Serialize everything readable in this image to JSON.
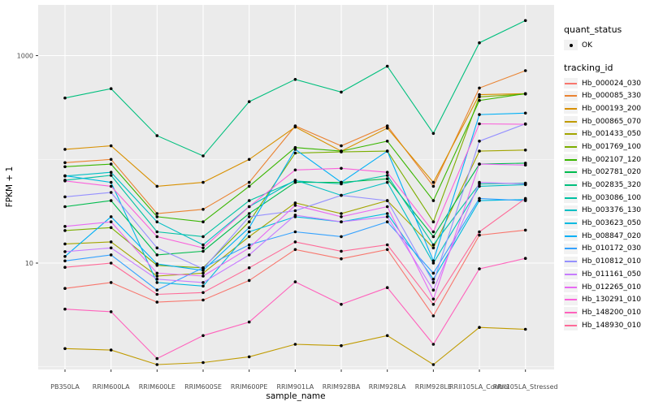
{
  "chart_data": {
    "type": "line",
    "title": "",
    "xlabel": "sample_name",
    "ylabel": "FPKM + 1",
    "y_scale": "log10",
    "grid": true,
    "legend_position": "right",
    "panel_bg": "#EBEBEB",
    "grid_color": "#FFFFFF",
    "point_color": "#000000",
    "axis_text_color": "#4D4D4D",
    "y_ticks": [
      {
        "value": 10,
        "label": "10"
      },
      {
        "value": 1000,
        "label": "1000"
      }
    ],
    "y_minor_values": [
      1,
      100
    ],
    "ylim_log": [
      0.93,
      2600
    ],
    "x_categories": [
      "PB350LA",
      "RRIM600LA",
      "RRIM600LE",
      "RRIM600SE",
      "RRIM600PE",
      "RRIM901LA",
      "RRIM928BA",
      "RRIM928LA",
      "RRIM928LE",
      "RRII105LA_Control",
      "RRII105LA_Stressed"
    ],
    "legend": {
      "quant_status": {
        "title": "quant_status",
        "items": [
          {
            "label": "OK",
            "marker": "point"
          }
        ]
      },
      "tracking_id": {
        "title": "tracking_id"
      }
    },
    "series": [
      {
        "name": "Hb_000024_030",
        "color": "#F8766D",
        "values": [
          5.7,
          6.5,
          4.2,
          4.4,
          6.8,
          13.5,
          11,
          13.5,
          3.1,
          18.6,
          20.8
        ]
      },
      {
        "name": "Hb_000085_330",
        "color": "#EA8331",
        "values": [
          93,
          100,
          30,
          33,
          60,
          210,
          135,
          210,
          55,
          487,
          716
        ]
      },
      {
        "name": "Hb_000193_200",
        "color": "#D89000",
        "values": [
          125,
          135,
          55,
          60,
          100,
          205,
          120,
          200,
          60,
          420,
          430
        ]
      },
      {
        "name": "Hb_000865_070",
        "color": "#C09B00",
        "values": [
          1.5,
          1.45,
          1.05,
          1.1,
          1.25,
          1.65,
          1.6,
          2.0,
          1.05,
          2.4,
          2.3
        ]
      },
      {
        "name": "Hb_001433_050",
        "color": "#A3A500",
        "values": [
          15.3,
          16,
          7.5,
          8,
          18,
          38,
          30,
          40,
          14,
          120,
          123
        ]
      },
      {
        "name": "Hb_001769_100",
        "color": "#7CAE00",
        "values": [
          20.6,
          22,
          9.5,
          9,
          25,
          115,
          118,
          120,
          25,
          400,
          426
        ]
      },
      {
        "name": "Hb_002107_120",
        "color": "#39B600",
        "values": [
          85,
          90,
          28,
          25,
          55,
          130,
          120,
          150,
          40,
          370,
          430
        ]
      },
      {
        "name": "Hb_002781_020",
        "color": "#00BB4E",
        "values": [
          35,
          40,
          12,
          13,
          30,
          60,
          60,
          65,
          18,
          90,
          92
        ]
      },
      {
        "name": "Hb_002835_320",
        "color": "#00BF7D",
        "values": [
          390,
          480,
          169,
          108,
          360,
          590,
          445,
          790,
          178,
          1330,
          2180
        ]
      },
      {
        "name": "Hb_003086_100",
        "color": "#00C1A3",
        "values": [
          63,
          70,
          20,
          18,
          40,
          62,
          58,
          70,
          15,
          58,
          59
        ]
      },
      {
        "name": "Hb_003376_130",
        "color": "#00BFC4",
        "values": [
          69,
          75,
          25,
          15,
          35,
          63,
          45,
          60,
          10,
          55,
          57
        ]
      },
      {
        "name": "Hb_003623_050",
        "color": "#00BAE0",
        "values": [
          69.5,
          60,
          6.5,
          6,
          20,
          28,
          25,
          30,
          7,
          40,
          41
        ]
      },
      {
        "name": "Hb_008847_020",
        "color": "#00B0F6",
        "values": [
          11.6,
          28,
          9.8,
          8.5,
          22,
          125,
          60,
          120,
          10.5,
          270,
          279
        ]
      },
      {
        "name": "Hb_010172_030",
        "color": "#35A2FF",
        "values": [
          10.5,
          12,
          5.5,
          9,
          15,
          20,
          18,
          25,
          8,
          42,
          40
        ]
      },
      {
        "name": "Hb_010812_010",
        "color": "#9590FF",
        "values": [
          43.5,
          48,
          14,
          8.8,
          28,
          32,
          45,
          40,
          6.5,
          150,
          220
        ]
      },
      {
        "name": "Hb_011161_050",
        "color": "#C77CFF",
        "values": [
          12.9,
          14,
          7,
          6.5,
          12,
          29,
          25,
          28,
          5.5,
          60,
          58
        ]
      },
      {
        "name": "Hb_012265_010",
        "color": "#E76BF3",
        "values": [
          22.6,
          25,
          8,
          7.5,
          14,
          36,
          28,
          35,
          4.5,
          90,
          88
        ]
      },
      {
        "name": "Hb_130291_010",
        "color": "#FA62DB",
        "values": [
          62,
          55,
          18,
          14,
          35,
          79,
          82,
          75,
          20,
          220,
          218
        ]
      },
      {
        "name": "Hb_148200_010",
        "color": "#FF62BC",
        "values": [
          3.6,
          3.4,
          1.2,
          2.0,
          2.7,
          6.6,
          4.0,
          5.8,
          1.65,
          8.8,
          11.1
        ]
      },
      {
        "name": "Hb_148930_010",
        "color": "#FF6A98",
        "values": [
          9.1,
          10,
          5,
          5.2,
          9,
          16,
          13,
          15,
          4,
          20,
          42
        ]
      }
    ]
  }
}
